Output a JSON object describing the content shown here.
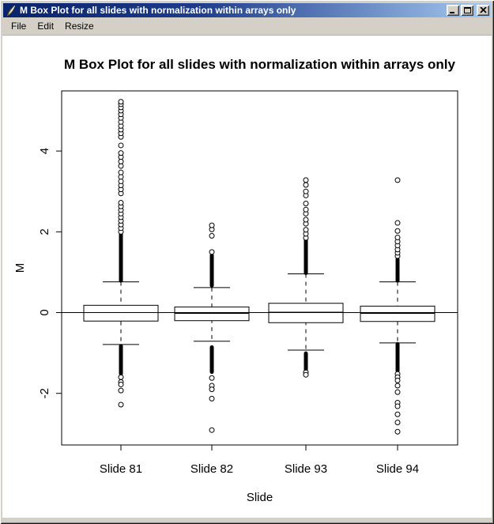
{
  "window": {
    "title": "M Box Plot for all slides with normalization within arrays only"
  },
  "menu": {
    "items": [
      "File",
      "Edit",
      "Resize"
    ]
  },
  "icons": {
    "window_icon": "r-graphics-quill-icon",
    "minimize": "minimize-icon",
    "maximize": "maximize-icon",
    "close": "close-icon"
  },
  "colors": {
    "titlebar_left": "#0a246a",
    "titlebar_right": "#a6caf0",
    "chrome": "#d4d0c8",
    "plot_foreground": "#000000",
    "plot_background": "#ffffff"
  },
  "chart_data": {
    "type": "boxplot",
    "title": "M Box Plot for all slides with normalization within arrays only",
    "xlabel": "Slide",
    "ylabel": "M",
    "categories": [
      "Slide 81",
      "Slide 82",
      "Slide 93",
      "Slide 94"
    ],
    "y_ticks": [
      -2,
      0,
      2,
      4
    ],
    "ylim": [
      -3.28,
      5.49
    ],
    "reference_line_y": 0,
    "grid": false,
    "legend": "none",
    "series": [
      {
        "name": "Slide 81",
        "median": 0.0,
        "q1": -0.21,
        "q3": 0.18,
        "whisker_low": -0.79,
        "whisker_high": 0.76,
        "outlier_bands": [
          [
            0.78,
            1.95
          ],
          [
            -0.82,
            -1.52
          ]
        ],
        "outliers": [
          2.0,
          2.09,
          2.18,
          2.27,
          2.36,
          2.45,
          2.54,
          2.63,
          2.72,
          2.95,
          3.05,
          3.15,
          3.25,
          3.36,
          3.47,
          3.63,
          3.74,
          3.85,
          3.95,
          4.14,
          4.35,
          4.44,
          4.53,
          4.62,
          4.72,
          4.82,
          4.91,
          5.0,
          5.08,
          5.16,
          5.22,
          -1.6,
          -1.72,
          -1.78,
          -1.93,
          -2.28
        ]
      },
      {
        "name": "Slide 82",
        "median": -0.02,
        "q1": -0.2,
        "q3": 0.14,
        "whisker_low": -0.71,
        "whisker_high": 0.62,
        "outlier_bands": [
          [
            0.66,
            1.42
          ],
          [
            -0.85,
            -1.48
          ]
        ],
        "outliers": [
          1.5,
          1.9,
          2.06,
          2.16,
          -1.62,
          -1.81,
          -1.9,
          -2.13,
          -2.91
        ]
      },
      {
        "name": "Slide 93",
        "median": 0.01,
        "q1": -0.25,
        "q3": 0.23,
        "whisker_low": -0.93,
        "whisker_high": 0.96,
        "outlier_bands": [
          [
            0.97,
            1.8
          ],
          [
            -1.0,
            -1.42
          ]
        ],
        "outliers": [
          1.85,
          1.95,
          2.05,
          2.2,
          2.3,
          2.45,
          2.55,
          2.7,
          2.9,
          3.0,
          3.16,
          3.28,
          -1.48,
          -1.54
        ]
      },
      {
        "name": "Slide 94",
        "median": -0.02,
        "q1": -0.22,
        "q3": 0.16,
        "whisker_low": -0.75,
        "whisker_high": 0.76,
        "outlier_bands": [
          [
            0.78,
            1.33
          ],
          [
            -0.77,
            -1.45
          ]
        ],
        "outliers": [
          1.4,
          1.48,
          1.56,
          1.66,
          1.76,
          1.86,
          2.02,
          2.22,
          3.28,
          -1.52,
          -1.6,
          -1.68,
          -1.81,
          -1.97,
          -2.23,
          -2.32,
          -2.52,
          -2.72,
          -2.95
        ]
      }
    ]
  }
}
